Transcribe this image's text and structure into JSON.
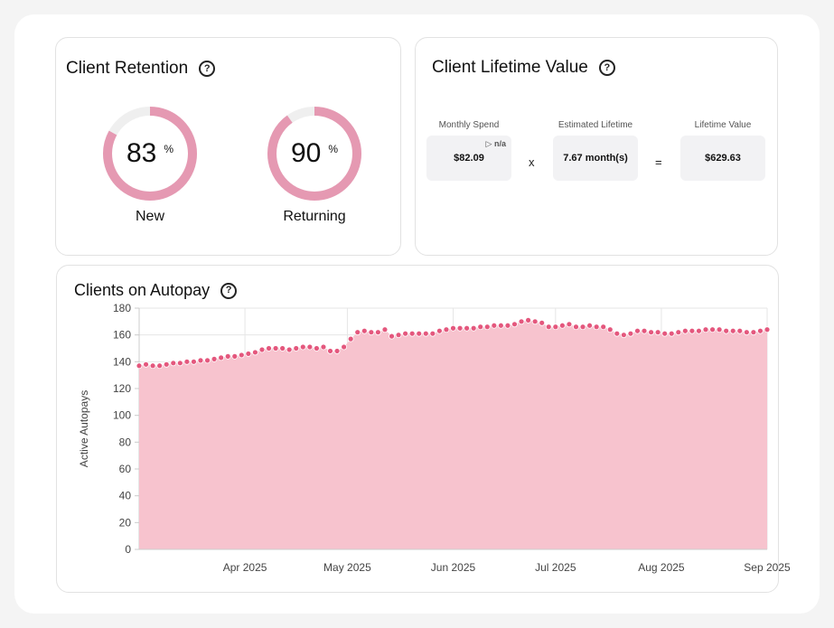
{
  "retention": {
    "title": "Client Retention",
    "help_icon": "question-circle-icon",
    "new": {
      "value": 83,
      "unit": "%",
      "label": "New"
    },
    "returning": {
      "value": 90,
      "unit": "%",
      "label": "Returning"
    },
    "colors": {
      "ring": "#e599b2",
      "track": "#efefef"
    }
  },
  "lifetime": {
    "title": "Client Lifetime Value",
    "help_icon": "question-circle-icon",
    "monthly_spend": {
      "label": "Monthly Spend",
      "value": "$82.09",
      "change": "n/a",
      "change_icon": "triangle-right-icon"
    },
    "operator_x": "x",
    "estimated_lifetime": {
      "label": "Estimated Lifetime",
      "value": "7.67 month(s)"
    },
    "operator_eq": "=",
    "lifetime_value": {
      "label": "Lifetime Value",
      "value": "$629.63"
    }
  },
  "autopay": {
    "title": "Clients on Autopay",
    "help_icon": "question-circle-icon"
  },
  "chart_data": {
    "type": "area",
    "title": "Clients on Autopay",
    "xlabel": "",
    "ylabel": "Active Autopays",
    "ylim": [
      0,
      180
    ],
    "yticks": [
      0,
      20,
      40,
      60,
      80,
      100,
      120,
      140,
      160,
      180
    ],
    "xlim": [
      "2025-03-01",
      "2025-09-01"
    ],
    "xticks": [
      {
        "date": "2025-04-01",
        "label": "Apr 2025"
      },
      {
        "date": "2025-05-01",
        "label": "May 2025"
      },
      {
        "date": "2025-06-01",
        "label": "Jun 2025"
      },
      {
        "date": "2025-07-01",
        "label": "Jul 2025"
      },
      {
        "date": "2025-08-01",
        "label": "Aug 2025"
      },
      {
        "date": "2025-09-01",
        "label": "Sep 2025"
      }
    ],
    "grid": true,
    "legend": "none",
    "colors": {
      "fill": "#f7c3ce",
      "point": "#e4577d",
      "point_edge": "#ffffff"
    },
    "series": [
      {
        "x": [
          "2025-03-01",
          "2025-03-03",
          "2025-03-05",
          "2025-03-07",
          "2025-03-09",
          "2025-03-11",
          "2025-03-13",
          "2025-03-15",
          "2025-03-17",
          "2025-03-19",
          "2025-03-21",
          "2025-03-23",
          "2025-03-25",
          "2025-03-27",
          "2025-03-29",
          "2025-03-31",
          "2025-04-02",
          "2025-04-04",
          "2025-04-06",
          "2025-04-08",
          "2025-04-10",
          "2025-04-12",
          "2025-04-14",
          "2025-04-16",
          "2025-04-18",
          "2025-04-20",
          "2025-04-22",
          "2025-04-24",
          "2025-04-26",
          "2025-04-28",
          "2025-04-30",
          "2025-05-02",
          "2025-05-04",
          "2025-05-06",
          "2025-05-08",
          "2025-05-10",
          "2025-05-12",
          "2025-05-14",
          "2025-05-16",
          "2025-05-18",
          "2025-05-20",
          "2025-05-22",
          "2025-05-24",
          "2025-05-26",
          "2025-05-28",
          "2025-05-30",
          "2025-06-01",
          "2025-06-03",
          "2025-06-05",
          "2025-06-07",
          "2025-06-09",
          "2025-06-11",
          "2025-06-13",
          "2025-06-15",
          "2025-06-17",
          "2025-06-19",
          "2025-06-21",
          "2025-06-23",
          "2025-06-25",
          "2025-06-27",
          "2025-06-29",
          "2025-07-01",
          "2025-07-03",
          "2025-07-05",
          "2025-07-07",
          "2025-07-09",
          "2025-07-11",
          "2025-07-13",
          "2025-07-15",
          "2025-07-17",
          "2025-07-19",
          "2025-07-21",
          "2025-07-23",
          "2025-07-25",
          "2025-07-27",
          "2025-07-29",
          "2025-07-31",
          "2025-08-02",
          "2025-08-04",
          "2025-08-06",
          "2025-08-08",
          "2025-08-10",
          "2025-08-12",
          "2025-08-14",
          "2025-08-16",
          "2025-08-18",
          "2025-08-20",
          "2025-08-22",
          "2025-08-24",
          "2025-08-26",
          "2025-08-28",
          "2025-08-30",
          "2025-09-01"
        ],
        "y": [
          137,
          138,
          137,
          137,
          138,
          139,
          139,
          140,
          140,
          141,
          141,
          142,
          143,
          144,
          144,
          145,
          146,
          147,
          149,
          150,
          150,
          150,
          149,
          150,
          151,
          151,
          150,
          151,
          148,
          148,
          151,
          157,
          162,
          163,
          162,
          162,
          164,
          159,
          160,
          161,
          161,
          161,
          161,
          161,
          163,
          164,
          165,
          165,
          165,
          165,
          166,
          166,
          167,
          167,
          167,
          168,
          170,
          171,
          170,
          169,
          166,
          166,
          167,
          168,
          166,
          166,
          167,
          166,
          166,
          164,
          161,
          160,
          161,
          163,
          163,
          162,
          162,
          161,
          161,
          162,
          163,
          163,
          163,
          164,
          164,
          164,
          163,
          163,
          163,
          162,
          162,
          163,
          164
        ]
      }
    ]
  }
}
